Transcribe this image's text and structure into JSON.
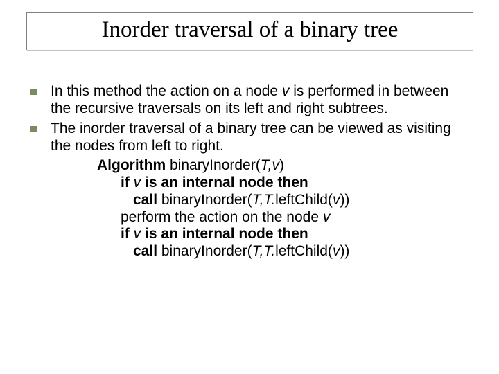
{
  "title": "Inorder traversal of a binary tree",
  "bullets": [
    {
      "pre": "In this method the action on a node ",
      "var": "v",
      "post": " is performed in between the recursive traversals on its left and right subtrees."
    },
    {
      "text": "The inorder traversal of a binary tree can be viewed as visiting the nodes from left to right."
    }
  ],
  "algo": {
    "line1": {
      "bold": "Algorithm",
      "rest": " binaryInorder(",
      "var": "T,v",
      "close": ")"
    },
    "line2": {
      "bold_pre": "if ",
      "var": "v",
      "bold_post": " is an internal node then"
    },
    "line3": {
      "bold": "call",
      "rest": " binaryInorder(",
      "var1": "T,T.",
      "plain": "leftChild(",
      "var2": "v",
      "close": "))"
    },
    "line4": {
      "pre": "perform the action on the node ",
      "var": "v"
    },
    "line5": {
      "bold_pre": "if ",
      "var": "v",
      "bold_post": " is an internal node then"
    },
    "line6": {
      "bold": "call",
      "rest": " binaryInorder(",
      "var1": "T,T.",
      "plain": "leftChild(",
      "var2": "v",
      "close": "))"
    }
  },
  "colors": {
    "bullet_square": "#7a8a64",
    "title_border": "#808080",
    "text": "#000000",
    "background": "#ffffff"
  },
  "fonts": {
    "title_family": "Times New Roman",
    "body_family": "Arial",
    "title_size_pt": 33,
    "body_size_pt": 21
  }
}
